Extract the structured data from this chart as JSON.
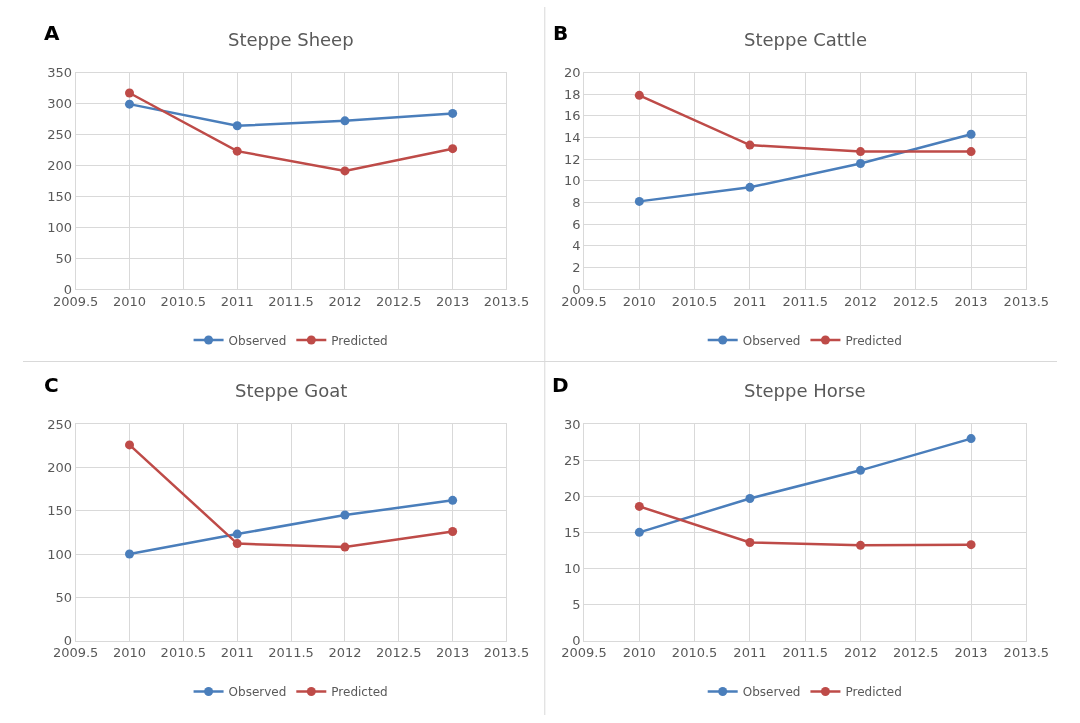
{
  "chart_data": [
    {
      "type": "line",
      "title": "Steppe Sheep",
      "annotations": [
        "A"
      ],
      "x": [
        2010,
        2011,
        2012,
        2013
      ],
      "xlim": [
        2009.5,
        2013.5
      ],
      "xticks": [
        2009.5,
        2010,
        2010.5,
        2011,
        2011.5,
        2012,
        2012.5,
        2013,
        2013.5
      ],
      "ylim": [
        0,
        350
      ],
      "yticks": [
        0,
        50,
        100,
        150,
        200,
        250,
        300,
        350
      ],
      "grid": true,
      "legend": "bottom",
      "marker": "circle",
      "series": [
        {
          "name": "Observed",
          "color": "#4a7ebb",
          "values": [
            299,
            264,
            272,
            284
          ]
        },
        {
          "name": "Predicted",
          "color": "#be4b48",
          "values": [
            317,
            223,
            191,
            227
          ]
        }
      ]
    },
    {
      "type": "line",
      "title": "Steppe Cattle",
      "annotations": [
        "B"
      ],
      "x": [
        2010,
        2011,
        2012,
        2013
      ],
      "xlim": [
        2009.5,
        2013.5
      ],
      "xticks": [
        2009.5,
        2010,
        2010.5,
        2011,
        2011.5,
        2012,
        2012.5,
        2013,
        2013.5
      ],
      "ylim": [
        0,
        20
      ],
      "yticks": [
        0,
        2,
        4,
        6,
        8,
        10,
        12,
        14,
        16,
        18,
        20
      ],
      "grid": true,
      "legend": "bottom",
      "marker": "circle",
      "series": [
        {
          "name": "Observed",
          "color": "#4a7ebb",
          "values": [
            8.1,
            9.4,
            11.6,
            14.3
          ]
        },
        {
          "name": "Predicted",
          "color": "#be4b48",
          "values": [
            17.9,
            13.3,
            12.7,
            12.7
          ]
        }
      ]
    },
    {
      "type": "line",
      "title": "Steppe Goat",
      "annotations": [
        "C"
      ],
      "x": [
        2010,
        2011,
        2012,
        2013
      ],
      "xlim": [
        2009.5,
        2013.5
      ],
      "xticks": [
        2009.5,
        2010,
        2010.5,
        2011,
        2011.5,
        2012,
        2012.5,
        2013,
        2013.5
      ],
      "ylim": [
        0,
        250
      ],
      "yticks": [
        0,
        50,
        100,
        150,
        200,
        250
      ],
      "grid": true,
      "legend": "bottom",
      "marker": "circle",
      "series": [
        {
          "name": "Observed",
          "color": "#4a7ebb",
          "values": [
            100,
            123,
            145,
            162
          ]
        },
        {
          "name": "Predicted",
          "color": "#be4b48",
          "values": [
            226,
            112,
            108,
            126
          ]
        }
      ]
    },
    {
      "type": "line",
      "title": "Steppe Horse",
      "annotations": [
        "D"
      ],
      "x": [
        2010,
        2011,
        2012,
        2013
      ],
      "xlim": [
        2009.5,
        2013.5
      ],
      "xticks": [
        2009.5,
        2010,
        2010.5,
        2011,
        2011.5,
        2012,
        2012.5,
        2013,
        2013.5
      ],
      "ylim": [
        0,
        30
      ],
      "yticks": [
        0,
        5,
        10,
        15,
        20,
        25,
        30
      ],
      "grid": true,
      "legend": "bottom",
      "marker": "circle",
      "series": [
        {
          "name": "Observed",
          "color": "#4a7ebb",
          "values": [
            15,
            19.7,
            23.6,
            28
          ]
        },
        {
          "name": "Predicted",
          "color": "#be4b48",
          "values": [
            18.6,
            13.6,
            13.2,
            13.3
          ]
        }
      ]
    }
  ]
}
